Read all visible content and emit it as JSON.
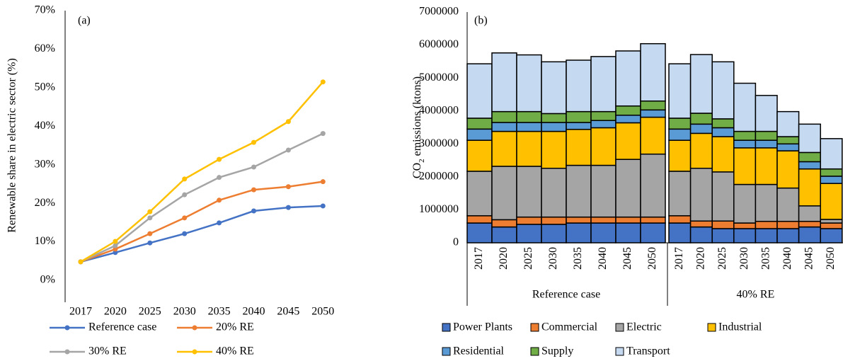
{
  "chart_data": [
    {
      "type": "line",
      "panel_label": "(a)",
      "y_label": "Renewable share in electric sector (%)",
      "categories": [
        "2017",
        "2020",
        "2025",
        "2030",
        "2035",
        "2040",
        "2045",
        "2050"
      ],
      "ylim": [
        0,
        70
      ],
      "yticks": [
        {
          "value": 0,
          "label": "0%"
        },
        {
          "value": 10,
          "label": "10%"
        },
        {
          "value": 20,
          "label": "20%"
        },
        {
          "value": 30,
          "label": "30%"
        },
        {
          "value": 40,
          "label": "40%"
        },
        {
          "value": 50,
          "label": "50%"
        },
        {
          "value": 60,
          "label": "60%"
        },
        {
          "value": 70,
          "label": "70%"
        }
      ],
      "series": [
        {
          "name": "Reference case",
          "color": "#4472c4",
          "values": [
            4.8,
            7.2,
            9.7,
            12.1,
            14.9,
            18.0,
            18.9,
            19.3
          ]
        },
        {
          "name": "20% RE",
          "color": "#ed7d31",
          "values": [
            4.8,
            8.1,
            12.1,
            16.2,
            20.8,
            23.5,
            24.3,
            25.6
          ]
        },
        {
          "name": "30% RE",
          "color": "#a5a5a5",
          "values": [
            4.8,
            9.0,
            16.2,
            22.2,
            26.7,
            29.4,
            33.8,
            38.1
          ]
        },
        {
          "name": "40% RE",
          "color": "#ffc000",
          "values": [
            4.8,
            10.1,
            17.8,
            26.3,
            31.4,
            35.8,
            41.2,
            51.5
          ]
        }
      ]
    },
    {
      "type": "stacked_bar",
      "panel_label": "(b)",
      "y_label_parts": [
        "CO",
        "2",
        " emissions (ktons)"
      ],
      "groups": [
        {
          "name": "Reference case",
          "categories": [
            "2017",
            "2020",
            "2025",
            "2030",
            "2035",
            "2040",
            "2045",
            "2050"
          ]
        },
        {
          "name": "40% RE",
          "categories": [
            "2017",
            "2020",
            "2025",
            "2030",
            "2035",
            "2040",
            "2045",
            "2050"
          ]
        }
      ],
      "ylim": [
        0,
        7000000
      ],
      "yticks": [
        0,
        1000000,
        2000000,
        3000000,
        4000000,
        5000000,
        6000000,
        7000000
      ],
      "series": [
        {
          "name": "Power Plants",
          "color": "#4472c4",
          "values": [
            600000,
            480000,
            560000,
            560000,
            600000,
            600000,
            600000,
            600000,
            600000,
            480000,
            430000,
            430000,
            430000,
            430000,
            480000,
            430000
          ]
        },
        {
          "name": "Commercial",
          "color": "#ed7d31",
          "values": [
            220000,
            220000,
            220000,
            220000,
            180000,
            180000,
            180000,
            180000,
            220000,
            180000,
            230000,
            170000,
            220000,
            220000,
            170000,
            170000
          ]
        },
        {
          "name": "Electric",
          "color": "#a5a5a5",
          "values": [
            1350000,
            1620000,
            1540000,
            1480000,
            1570000,
            1570000,
            1750000,
            1910000,
            1350000,
            1600000,
            1490000,
            1170000,
            1120000,
            1010000,
            470000,
            110000
          ]
        },
        {
          "name": "Industrial",
          "color": "#ffc000",
          "values": [
            940000,
            1060000,
            1060000,
            1120000,
            1090000,
            1140000,
            1110000,
            1120000,
            940000,
            1060000,
            1070000,
            1110000,
            1110000,
            1130000,
            1120000,
            1090000
          ]
        },
        {
          "name": "Residential",
          "color": "#5b9bd5",
          "values": [
            340000,
            270000,
            270000,
            270000,
            210000,
            220000,
            230000,
            220000,
            340000,
            280000,
            270000,
            230000,
            230000,
            210000,
            220000,
            220000
          ]
        },
        {
          "name": "Supply",
          "color": "#70ad47",
          "values": [
            330000,
            330000,
            330000,
            270000,
            330000,
            270000,
            280000,
            270000,
            330000,
            330000,
            270000,
            270000,
            270000,
            220000,
            280000,
            220000
          ]
        },
        {
          "name": "Transport",
          "color": "#c5d9f1",
          "values": [
            1650000,
            1780000,
            1720000,
            1570000,
            1560000,
            1670000,
            1670000,
            1740000,
            1650000,
            1780000,
            1730000,
            1460000,
            1090000,
            760000,
            860000,
            920000
          ]
        }
      ]
    }
  ]
}
